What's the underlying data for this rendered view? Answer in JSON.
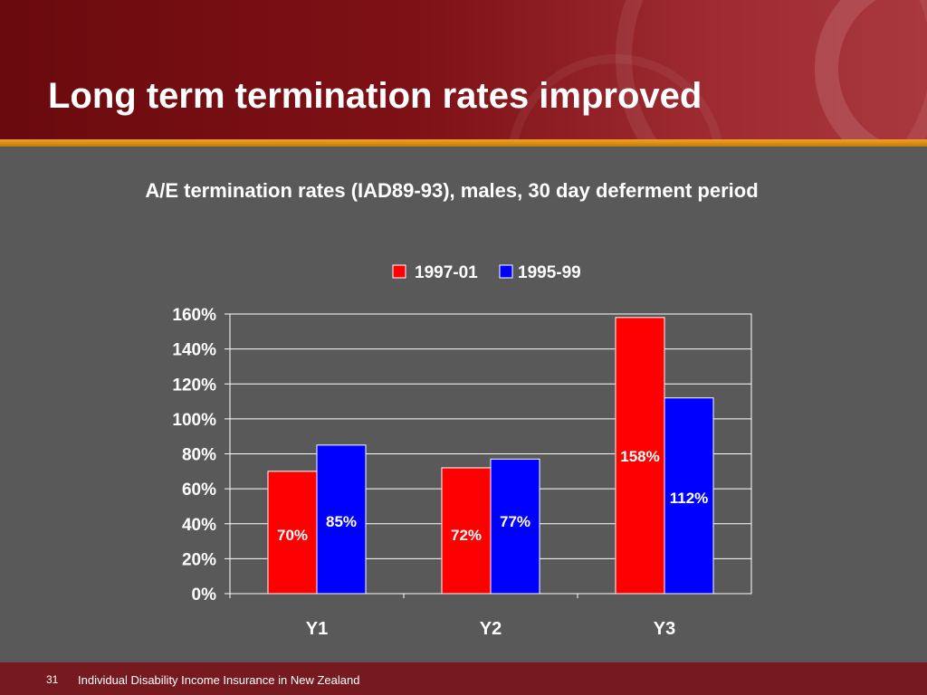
{
  "slide": {
    "title": "Long term termination rates improved",
    "page_number": "31",
    "footer_text": "Individual Disability Income Insurance in New Zealand"
  },
  "colors": {
    "background": "#595959",
    "header": "#7e1116",
    "accent_bar": "#f0a325",
    "footer": "#771a1f",
    "series_1997_01": "#ff0000",
    "series_1995_99": "#0000ff",
    "text": "#ffffff"
  },
  "chart_data": {
    "type": "bar",
    "title": "A/E termination rates (IAD89-93), males, 30 day deferment period",
    "categories": [
      "Y1",
      "Y2",
      "Y3"
    ],
    "series": [
      {
        "name": "1997-01",
        "color": "#ff0000",
        "values": [
          70,
          72,
          158
        ],
        "labels": [
          "70%",
          "72%",
          "158%"
        ]
      },
      {
        "name": "1995-99",
        "color": "#0000ff",
        "values": [
          85,
          77,
          112
        ],
        "labels": [
          "85%",
          "77%",
          "112%"
        ]
      }
    ],
    "ylim": [
      0,
      160
    ],
    "yticks": [
      "0%",
      "20%",
      "40%",
      "60%",
      "80%",
      "100%",
      "120%",
      "140%",
      "160%"
    ],
    "grid": true,
    "legend_position": "top"
  }
}
